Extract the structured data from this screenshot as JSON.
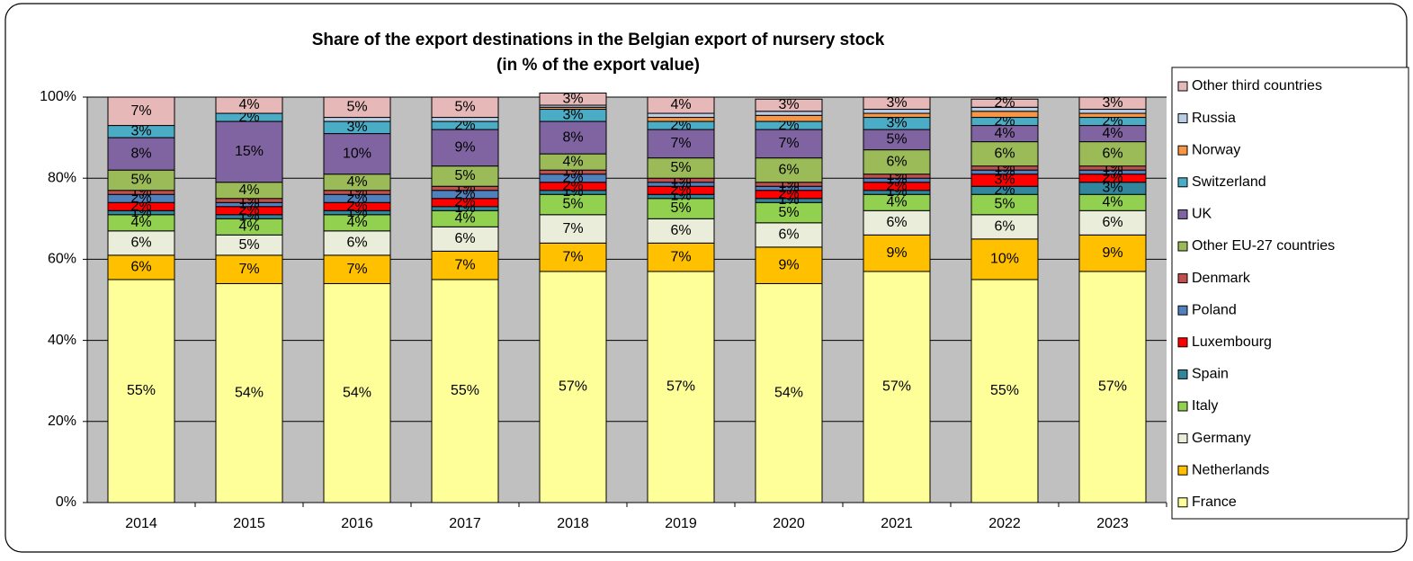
{
  "chart_data": {
    "type": "stacked_bar",
    "title": "Share of the export destinations in the Belgian export of nursery stock",
    "subtitle": "(in % of the export value)",
    "categories": [
      "2014",
      "2015",
      "2016",
      "2017",
      "2018",
      "2019",
      "2020",
      "2021",
      "2022",
      "2023"
    ],
    "ylim": [
      0,
      100
    ],
    "yticks": [
      {
        "value": 0,
        "label": "0%"
      },
      {
        "value": 20,
        "label": "20%"
      },
      {
        "value": 40,
        "label": "40%"
      },
      {
        "value": 60,
        "label": "60%"
      },
      {
        "value": 80,
        "label": "80%"
      },
      {
        "value": 100,
        "label": "100%"
      }
    ],
    "grid": true,
    "legend": "right",
    "series": [
      {
        "name": "France",
        "color": "#ffff99",
        "values": [
          55,
          54,
          54,
          55,
          57,
          57,
          54,
          57,
          55,
          57
        ],
        "value_labels": [
          "55%",
          "54%",
          "54%",
          "55%",
          "57%",
          "57%",
          "54%",
          "57%",
          "55%",
          "57%"
        ]
      },
      {
        "name": "Netherlands",
        "color": "#ffc000",
        "values": [
          6,
          7,
          7,
          7,
          7,
          7,
          9,
          9,
          10,
          9
        ],
        "value_labels": [
          "6%",
          "7%",
          "7%",
          "7%",
          "7%",
          "7%",
          "9%",
          "9%",
          "10%",
          "9%"
        ]
      },
      {
        "name": "Germany",
        "color": "#e9edd9",
        "values": [
          6,
          5,
          6,
          6,
          7,
          6,
          6,
          6,
          6,
          6
        ],
        "value_labels": [
          "6%",
          "5%",
          "6%",
          "6%",
          "7%",
          "6%",
          "6%",
          "6%",
          "6%",
          "6%"
        ]
      },
      {
        "name": "Italy",
        "color": "#92d050",
        "values": [
          4,
          4,
          4,
          4,
          5,
          5,
          5,
          4,
          5,
          4
        ],
        "value_labels": [
          "4%",
          "4%",
          "4%",
          "4%",
          "5%",
          "5%",
          "5%",
          "4%",
          "5%",
          "4%"
        ]
      },
      {
        "name": "Spain",
        "color": "#31859c",
        "values": [
          1,
          1,
          1,
          1,
          1,
          1,
          1,
          1,
          2,
          3
        ],
        "value_labels": [
          "1%",
          "1%",
          "1%",
          "1%",
          "1%",
          "1%",
          "1%",
          "1%",
          "2%",
          "3%"
        ]
      },
      {
        "name": "Luxembourg",
        "color": "#ff0000",
        "values": [
          2,
          2,
          2,
          2,
          2,
          2,
          2,
          2,
          3,
          2
        ],
        "value_labels": [
          "2%",
          "2%",
          "2%",
          "2%",
          "2%",
          "2%",
          "2%",
          "2%",
          "3%",
          "2%"
        ]
      },
      {
        "name": "Poland",
        "color": "#4f81bd",
        "values": [
          2,
          1,
          2,
          2,
          2,
          1,
          1,
          1,
          1,
          1
        ],
        "value_labels": [
          "2%",
          "1%",
          "2%",
          "2%",
          "2%",
          "1%",
          "1%",
          "1%",
          "1%",
          "1%"
        ]
      },
      {
        "name": "Denmark",
        "color": "#c0504d",
        "values": [
          1,
          1,
          1,
          1,
          1,
          1,
          1,
          1,
          1,
          1
        ],
        "value_labels": [
          "1%",
          "1%",
          "1%",
          "1%",
          "1%",
          "1%",
          "1%",
          "1%",
          "1%",
          "1%"
        ]
      },
      {
        "name": "Other EU-27 countries",
        "color": "#9bbb59",
        "values": [
          5,
          4,
          4,
          5,
          4,
          5,
          6,
          6,
          6,
          6
        ],
        "value_labels": [
          "5%",
          "4%",
          "4%",
          "5%",
          "4%",
          "5%",
          "6%",
          "6%",
          "6%",
          "6%"
        ]
      },
      {
        "name": "UK",
        "color": "#8064a2",
        "values": [
          8,
          15,
          10,
          9,
          8,
          7,
          7,
          5,
          4,
          4
        ],
        "value_labels": [
          "8%",
          "15%",
          "10%",
          "9%",
          "8%",
          "7%",
          "7%",
          "5%",
          "4%",
          "4%"
        ]
      },
      {
        "name": "Switzerland",
        "color": "#4bacc6",
        "values": [
          3,
          2,
          3,
          2,
          3,
          2,
          2,
          3,
          2,
          2
        ],
        "value_labels": [
          "3%",
          "2%",
          "3%",
          "2%",
          "3%",
          "2%",
          "2%",
          "3%",
          "2%",
          "2%"
        ]
      },
      {
        "name": "Norway",
        "color": "#f79646",
        "values": [
          0,
          0,
          0,
          0,
          0.5,
          1,
          1.5,
          1,
          1.5,
          1
        ],
        "value_labels": [
          null,
          null,
          null,
          null,
          null,
          null,
          null,
          null,
          null,
          null
        ]
      },
      {
        "name": "Russia",
        "color": "#b9cde5",
        "values": [
          0,
          0,
          1,
          1,
          0.5,
          1,
          1,
          1,
          1,
          1
        ],
        "value_labels": [
          null,
          null,
          null,
          null,
          null,
          null,
          null,
          null,
          null,
          null
        ]
      },
      {
        "name": "Other third countries",
        "color": "#e6b9b8",
        "values": [
          7,
          4,
          5,
          5,
          3,
          4,
          3,
          3,
          2,
          3
        ],
        "value_labels": [
          "7%",
          "4%",
          "5%",
          "5%",
          "3%",
          "4%",
          "3%",
          "3%",
          "2%",
          "3%"
        ]
      }
    ]
  }
}
